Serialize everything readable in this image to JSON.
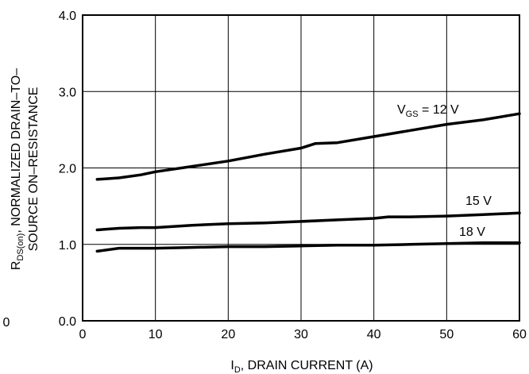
{
  "chart_data": {
    "type": "line",
    "xlabel": {
      "main": "I",
      "sub": "D",
      "rest": ", DRAIN CURRENT (A)"
    },
    "ylabel": {
      "line1_main": "R",
      "line1_sub": "DS(on)",
      "line1_rest": ", NORMALIZED DRAIN–TO–",
      "line2": "SOURCE ON–RESISTANCE"
    },
    "xlim": [
      0,
      60
    ],
    "ylim": [
      0.0,
      4.0
    ],
    "x_ticks": [
      "0",
      "10",
      "20",
      "30",
      "40",
      "50",
      "60"
    ],
    "y_ticks": [
      "0.0",
      "1.0",
      "2.0",
      "3.0",
      "4.0"
    ],
    "stray_label": "0",
    "grid": true,
    "series": [
      {
        "name": "V_GS = 12 V",
        "label": {
          "main": "V",
          "sub": "GS",
          "rest": " = 12 V"
        },
        "x": [
          2,
          5,
          8,
          10,
          15,
          20,
          25,
          30,
          32,
          35,
          40,
          45,
          50,
          55,
          60
        ],
        "values": [
          1.85,
          1.87,
          1.91,
          1.95,
          2.02,
          2.09,
          2.18,
          2.26,
          2.32,
          2.33,
          2.41,
          2.49,
          2.57,
          2.63,
          2.71
        ]
      },
      {
        "name": "15 V",
        "label": {
          "main": "15 V",
          "sub": "",
          "rest": ""
        },
        "x": [
          2,
          5,
          8,
          10,
          15,
          20,
          25,
          30,
          35,
          40,
          42,
          45,
          50,
          55,
          60
        ],
        "values": [
          1.19,
          1.21,
          1.22,
          1.22,
          1.25,
          1.27,
          1.28,
          1.3,
          1.32,
          1.34,
          1.36,
          1.36,
          1.37,
          1.39,
          1.41
        ]
      },
      {
        "name": "18 V",
        "label": {
          "main": "18 V",
          "sub": "",
          "rest": ""
        },
        "x": [
          2,
          5,
          8,
          10,
          15,
          20,
          25,
          30,
          35,
          40,
          45,
          50,
          55,
          60
        ],
        "values": [
          0.91,
          0.95,
          0.95,
          0.95,
          0.96,
          0.97,
          0.97,
          0.98,
          0.99,
          0.99,
          1.0,
          1.01,
          1.02,
          1.02
        ]
      }
    ]
  }
}
